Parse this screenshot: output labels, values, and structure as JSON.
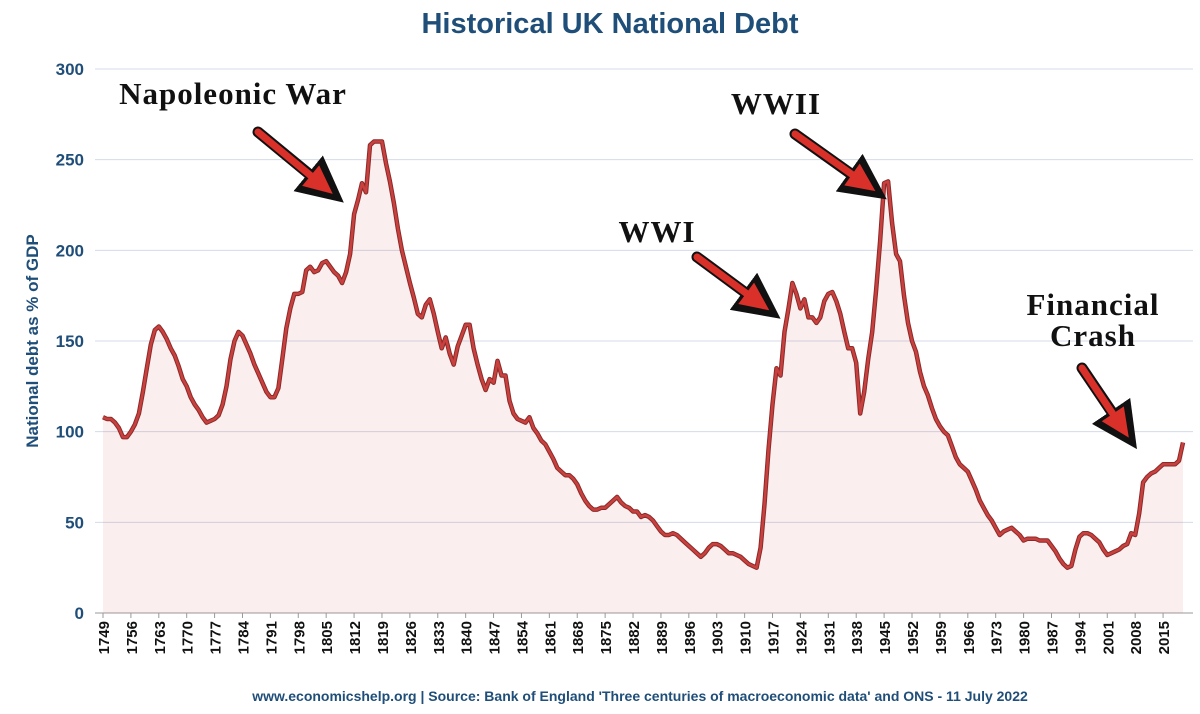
{
  "chart_data": {
    "type": "line",
    "title": "Historical UK National Debt",
    "y_label": "National debt as % of GDP",
    "source": "www.economicshelp.org | Source: Bank of England 'Three centuries of macroeconomic data' and ONS - 11 July 2022",
    "annotations": [
      {
        "text": [
          "Napoleonic War"
        ]
      },
      {
        "text": [
          "WWII"
        ]
      },
      {
        "text": [
          "WWI"
        ]
      },
      {
        "text": [
          "Financial",
          "Crash"
        ]
      }
    ],
    "x": [
      1749,
      1750,
      1751,
      1752,
      1753,
      1754,
      1755,
      1756,
      1757,
      1758,
      1759,
      1760,
      1761,
      1762,
      1763,
      1764,
      1765,
      1766,
      1767,
      1768,
      1769,
      1770,
      1771,
      1772,
      1773,
      1774,
      1775,
      1776,
      1777,
      1778,
      1779,
      1780,
      1781,
      1782,
      1783,
      1784,
      1785,
      1786,
      1787,
      1788,
      1789,
      1790,
      1791,
      1792,
      1793,
      1794,
      1795,
      1796,
      1797,
      1798,
      1799,
      1800,
      1801,
      1802,
      1803,
      1804,
      1805,
      1806,
      1807,
      1808,
      1809,
      1810,
      1811,
      1812,
      1813,
      1814,
      1815,
      1816,
      1817,
      1818,
      1819,
      1820,
      1821,
      1822,
      1823,
      1824,
      1825,
      1826,
      1827,
      1828,
      1829,
      1830,
      1831,
      1832,
      1833,
      1834,
      1835,
      1836,
      1837,
      1838,
      1839,
      1840,
      1841,
      1842,
      1843,
      1844,
      1845,
      1846,
      1847,
      1848,
      1849,
      1850,
      1851,
      1852,
      1853,
      1854,
      1855,
      1856,
      1857,
      1858,
      1859,
      1860,
      1861,
      1862,
      1863,
      1864,
      1865,
      1866,
      1867,
      1868,
      1869,
      1870,
      1871,
      1872,
      1873,
      1874,
      1875,
      1876,
      1877,
      1878,
      1879,
      1880,
      1881,
      1882,
      1883,
      1884,
      1885,
      1886,
      1887,
      1888,
      1889,
      1890,
      1891,
      1892,
      1893,
      1894,
      1895,
      1896,
      1897,
      1898,
      1899,
      1900,
      1901,
      1902,
      1903,
      1904,
      1905,
      1906,
      1907,
      1908,
      1909,
      1910,
      1911,
      1912,
      1913,
      1914,
      1915,
      1916,
      1917,
      1918,
      1919,
      1920,
      1921,
      1922,
      1923,
      1924,
      1925,
      1926,
      1927,
      1928,
      1929,
      1930,
      1931,
      1932,
      1933,
      1934,
      1935,
      1936,
      1937,
      1938,
      1939,
      1940,
      1941,
      1942,
      1943,
      1944,
      1945,
      1946,
      1947,
      1948,
      1949,
      1950,
      1951,
      1952,
      1953,
      1954,
      1955,
      1956,
      1957,
      1958,
      1959,
      1960,
      1961,
      1962,
      1963,
      1964,
      1965,
      1966,
      1967,
      1968,
      1969,
      1970,
      1971,
      1972,
      1973,
      1974,
      1975,
      1976,
      1977,
      1978,
      1979,
      1980,
      1981,
      1982,
      1983,
      1984,
      1985,
      1986,
      1987,
      1988,
      1989,
      1990,
      1991,
      1992,
      1993,
      1994,
      1995,
      1996,
      1997,
      1998,
      1999,
      2000,
      2001,
      2002,
      2003,
      2004,
      2005,
      2006,
      2007,
      2008,
      2009,
      2010,
      2011,
      2012,
      2013,
      2014,
      2015,
      2016,
      2017,
      2018,
      2019,
      2020
    ],
    "series": [
      {
        "name": "National debt",
        "color": "#c8413f",
        "values": [
          108,
          107,
          107,
          105,
          102,
          97,
          97,
          100,
          104,
          110,
          122,
          135,
          148,
          156,
          158,
          155,
          151,
          146,
          142,
          136,
          129,
          125,
          119,
          115,
          112,
          108,
          105,
          106,
          107,
          109,
          115,
          125,
          140,
          150,
          155,
          153,
          148,
          143,
          137,
          132,
          127,
          122,
          119,
          119,
          124,
          140,
          157,
          168,
          176,
          176,
          177,
          189,
          191,
          188,
          189,
          193,
          194,
          191,
          188,
          186,
          182,
          188,
          198,
          220,
          228,
          237,
          232,
          258,
          260,
          260,
          260,
          248,
          238,
          226,
          212,
          200,
          191,
          182,
          174,
          165,
          163,
          170,
          173,
          165,
          155,
          146,
          152,
          143,
          137,
          147,
          153,
          159,
          159,
          146,
          137,
          129,
          123,
          129,
          127,
          139,
          131,
          131,
          117,
          110,
          107,
          106,
          105,
          108,
          102,
          99,
          95,
          93,
          89,
          85,
          80,
          78,
          76,
          76,
          74,
          71,
          66,
          62,
          59,
          57,
          57,
          58,
          58,
          60,
          62,
          64,
          61,
          59,
          58,
          56,
          56,
          53,
          54,
          53,
          51,
          48,
          45,
          43,
          43,
          44,
          43,
          41,
          39,
          37,
          35,
          33,
          31,
          33,
          36,
          38,
          38,
          37,
          35,
          33,
          33,
          32,
          31,
          29,
          27,
          26,
          25,
          36,
          60,
          90,
          115,
          135,
          131,
          155,
          168,
          182,
          176,
          168,
          173,
          163,
          163,
          160,
          163,
          172,
          176,
          177,
          172,
          165,
          155,
          146,
          146,
          138,
          110,
          122,
          140,
          155,
          178,
          205,
          237,
          238,
          215,
          198,
          194,
          175,
          160,
          150,
          144,
          133,
          125,
          120,
          113,
          107,
          103,
          100,
          98,
          92,
          86,
          82,
          80,
          78,
          73,
          68,
          62,
          58,
          54,
          51,
          47,
          43,
          45,
          46,
          47,
          45,
          43,
          40,
          41,
          41,
          41,
          40,
          40,
          40,
          37,
          34,
          30,
          27,
          25,
          26,
          35,
          42,
          44,
          44,
          43,
          41,
          39,
          35,
          32,
          33,
          34,
          35,
          37,
          38,
          44,
          43,
          55,
          72,
          75,
          77,
          78,
          80,
          82,
          82,
          82,
          82,
          84,
          94
        ]
      }
    ],
    "xlim": [
      1749,
      2020
    ],
    "xticks": [
      1749,
      1756,
      1763,
      1770,
      1777,
      1784,
      1791,
      1798,
      1805,
      1812,
      1819,
      1826,
      1833,
      1840,
      1847,
      1854,
      1861,
      1868,
      1875,
      1882,
      1889,
      1896,
      1903,
      1910,
      1917,
      1924,
      1931,
      1938,
      1945,
      1952,
      1959,
      1966,
      1973,
      1980,
      1987,
      1994,
      2001,
      2008,
      2015
    ],
    "ylim": [
      0,
      300
    ],
    "yticks": [
      0,
      50,
      100,
      150,
      200,
      250,
      300
    ],
    "grid": true
  }
}
